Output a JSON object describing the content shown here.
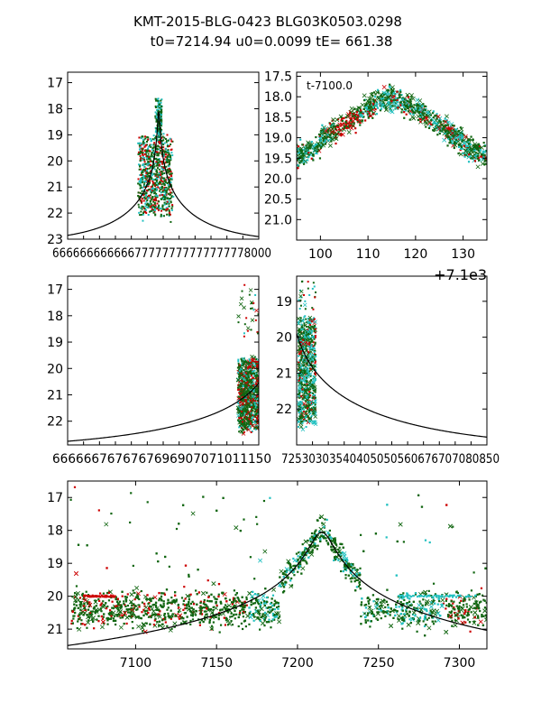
{
  "title": {
    "line1": "KMT-2015-BLG-0423 BLG03K0503.0298",
    "line2": "t0=7214.94 u0=0.0099 tE= 661.38"
  },
  "colors": {
    "red": "#cc0000",
    "cyan": "#22c0c0",
    "green": "#116611",
    "model": "#000000"
  },
  "model": {
    "t0": 7214.94,
    "u0": 0.0099,
    "tE": 661.38,
    "base": 23.15,
    "peak": 18.05
  },
  "chart_data": [
    {
      "id": "p1",
      "type": "scatter",
      "xlim": [
        6500,
        8000
      ],
      "ylim": [
        23,
        16.6
      ],
      "yticks": [
        17,
        18,
        19,
        20,
        21,
        22,
        23
      ],
      "ytick_labels": [
        "17",
        "18",
        "19",
        "20",
        "21",
        "22",
        "23"
      ],
      "xtick_labels_text": "66666666666677777777777777778000",
      "note": "upper-left overview, x tick labels overlap illegibly"
    },
    {
      "id": "p2",
      "type": "scatter",
      "xlim": [
        95,
        135
      ],
      "ylim": [
        21.5,
        17.4
      ],
      "xticks": [
        100,
        110,
        120,
        130
      ],
      "xtick_labels": [
        "100",
        "110",
        "120",
        "130"
      ],
      "yticks": [
        17.5,
        18.0,
        18.5,
        19.0,
        19.5,
        20.0,
        20.5,
        21.0
      ],
      "ytick_labels": [
        "17.5",
        "18.0",
        "18.5",
        "19.0",
        "19.5",
        "20.0",
        "20.5",
        "21.0"
      ],
      "x_offset_label": "+7.1e3",
      "inner_label": "t-7100.0"
    },
    {
      "id": "p3",
      "type": "scatter",
      "xlim": [
        6600,
        7150
      ],
      "ylim": [
        22.9,
        16.5
      ],
      "yticks": [
        17,
        18,
        19,
        20,
        21,
        22
      ],
      "ytick_labels": [
        "17",
        "18",
        "19",
        "20",
        "21",
        "22"
      ],
      "xtick_labels_text": "6666667676767696907071011150",
      "note": "middle-left, x tick labels overlap illegibly"
    },
    {
      "id": "p4",
      "type": "scatter",
      "xlim": [
        7250,
        7850
      ],
      "ylim": [
        23.0,
        18.3
      ],
      "yticks": [
        19,
        20,
        21,
        22
      ],
      "ytick_labels": [
        "19",
        "20",
        "21",
        "22"
      ],
      "xtick_labels_text": "72530303540405050560676707080850",
      "note": "middle-right, x tick labels overlap illegibly"
    },
    {
      "id": "p5",
      "type": "scatter",
      "xlim": [
        7058,
        7317
      ],
      "ylim": [
        21.6,
        16.5
      ],
      "xticks": [
        7100,
        7150,
        7200,
        7250,
        7300
      ],
      "xtick_labels": [
        "7100",
        "7150",
        "7200",
        "7250",
        "7300"
      ],
      "yticks": [
        17,
        18,
        19,
        20,
        21
      ],
      "ytick_labels": [
        "17",
        "18",
        "19",
        "20",
        "21"
      ]
    }
  ]
}
